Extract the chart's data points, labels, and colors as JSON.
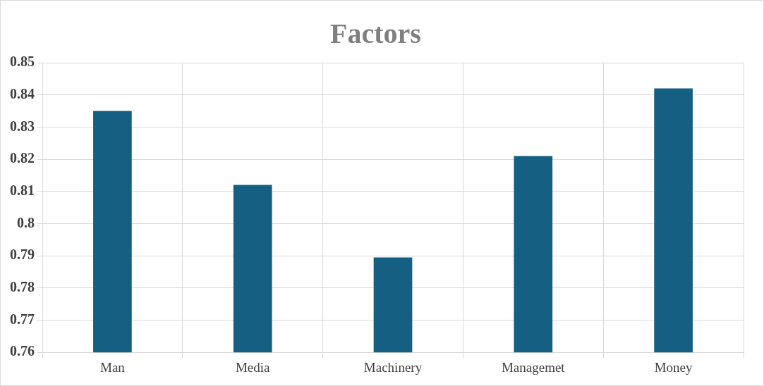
{
  "chart_data": {
    "type": "bar",
    "title": "Factors",
    "categories": [
      "Man",
      "Media",
      "Machinery",
      "Managemet",
      "Money"
    ],
    "values": [
      0.835,
      0.812,
      0.7895,
      0.821,
      0.842
    ],
    "color": "#155f82",
    "ylim": [
      0.76,
      0.85
    ],
    "yticks": [
      0.76,
      0.77,
      0.78,
      0.79,
      0.8,
      0.81,
      0.82,
      0.83,
      0.84,
      0.85
    ],
    "grid": true,
    "legend": false
  }
}
